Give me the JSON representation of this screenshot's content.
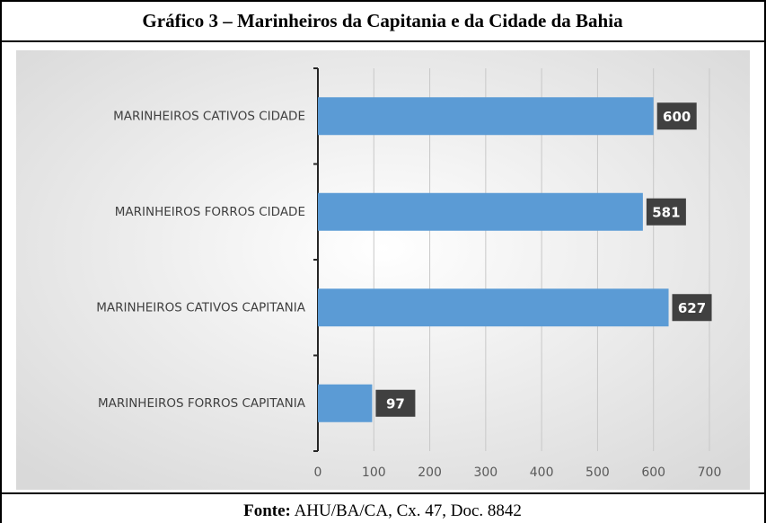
{
  "chart_data": {
    "type": "hbar",
    "title": "Gráfico 3 – Marinheiros da Capitania e da Cidade da Bahia",
    "categories": [
      "MARINHEIROS CATIVOS CIDADE",
      "MARINHEIROS FORROS CIDADE",
      "MARINHEIROS CATIVOS CAPITANIA",
      "MARINHEIROS FORROS CAPITANIA"
    ],
    "values": [
      600,
      581,
      627,
      97
    ],
    "color": "#5b9bd5",
    "xlim": [
      0,
      700
    ],
    "xticks": [
      0,
      100,
      200,
      300,
      400,
      500,
      600,
      700
    ],
    "grid": true
  },
  "footer": {
    "label": "Fonte:",
    "text": "AHU/BA/CA, Cx. 47, Doc. 8842"
  }
}
